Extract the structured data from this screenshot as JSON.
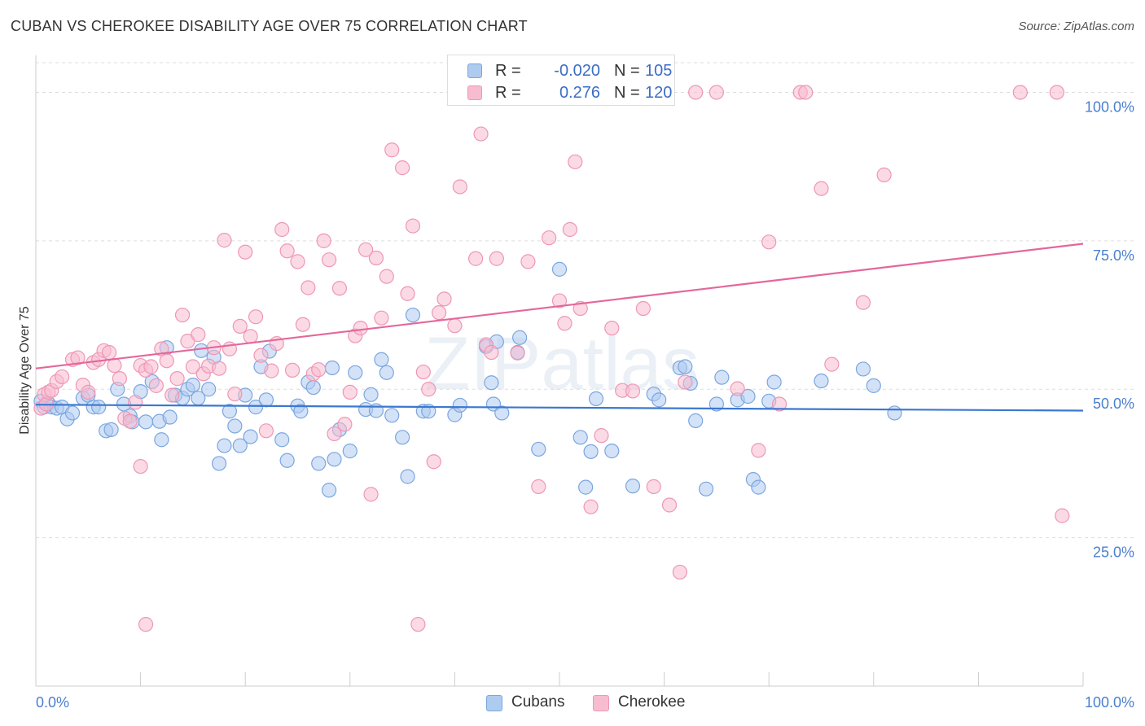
{
  "title": "CUBAN VS CHEROKEE DISABILITY AGE OVER 75 CORRELATION CHART",
  "source": "Source: ZipAtlas.com",
  "watermark": "ZIPatlas",
  "colors": {
    "cubans_fill": "#aecbf0",
    "cubans_stroke": "#7aa6e0",
    "cubans_line": "#3b78d0",
    "cherokee_fill": "#f7bcd0",
    "cherokee_stroke": "#ee97b5",
    "cherokee_line": "#e4679a",
    "tick_label": "#4a7fd0",
    "grid": "#dddddd"
  },
  "legend": {
    "rows": [
      {
        "r_label": "R =",
        "r_value": "-0.020",
        "n_label": "N =",
        "n_value": "105"
      },
      {
        "r_label": "R =",
        "r_value": "0.276",
        "n_label": "N =",
        "n_value": "120"
      }
    ]
  },
  "bottom_legend": {
    "cubans": "Cubans",
    "cherokee": "Cherokee"
  },
  "chart_data": {
    "type": "scatter",
    "title": "CUBAN VS CHEROKEE DISABILITY AGE OVER 75 CORRELATION CHART",
    "xlabel": "",
    "ylabel": "Disability Age Over 75",
    "xlim": [
      0,
      100
    ],
    "ylim": [
      0,
      105
    ],
    "x_tick_labels": [
      "0.0%",
      "100.0%"
    ],
    "y_ticks": [
      25,
      50,
      75,
      100
    ],
    "y_tick_labels": [
      "25.0%",
      "50.0%",
      "75.0%",
      "100.0%"
    ],
    "grid": true,
    "legend_position": "top-center",
    "series": [
      {
        "name": "Cubans",
        "r": -0.02,
        "n": 105,
        "trend": {
          "x": [
            0,
            100
          ],
          "y": [
            47.4,
            46.4
          ]
        },
        "points": [
          [
            0.5,
            48
          ],
          [
            0.8,
            47
          ],
          [
            1.2,
            47.6
          ],
          [
            1.5,
            47
          ],
          [
            2,
            46.8
          ],
          [
            2.5,
            47
          ],
          [
            3,
            45
          ],
          [
            3.5,
            46
          ],
          [
            4.5,
            48.5
          ],
          [
            5,
            49
          ],
          [
            5.5,
            47
          ],
          [
            6,
            47
          ],
          [
            6.7,
            43
          ],
          [
            7.2,
            43.2
          ],
          [
            7.8,
            50
          ],
          [
            8.4,
            47.5
          ],
          [
            9,
            45.5
          ],
          [
            9.2,
            44.5
          ],
          [
            10,
            49.6
          ],
          [
            10.5,
            44.5
          ],
          [
            11.1,
            51.3
          ],
          [
            11.8,
            44.6
          ],
          [
            12,
            41.5
          ],
          [
            12.5,
            57
          ],
          [
            12.8,
            45.3
          ],
          [
            13.3,
            49
          ],
          [
            14,
            48.5
          ],
          [
            14.5,
            50
          ],
          [
            15,
            50.7
          ],
          [
            15.5,
            48.5
          ],
          [
            15.8,
            56.5
          ],
          [
            16.5,
            50
          ],
          [
            17,
            55.4
          ],
          [
            17.5,
            37.5
          ],
          [
            18,
            40.5
          ],
          [
            18.5,
            46.3
          ],
          [
            19,
            43.8
          ],
          [
            19.5,
            40.5
          ],
          [
            20,
            49
          ],
          [
            20.5,
            42
          ],
          [
            21,
            47
          ],
          [
            21.5,
            53.8
          ],
          [
            22,
            48.2
          ],
          [
            22.3,
            56.4
          ],
          [
            23.5,
            41.5
          ],
          [
            24,
            38
          ],
          [
            25,
            47.2
          ],
          [
            25.3,
            46.3
          ],
          [
            26,
            51.2
          ],
          [
            26.5,
            50.3
          ],
          [
            27,
            37.5
          ],
          [
            28,
            33
          ],
          [
            28.3,
            53.6
          ],
          [
            28.5,
            38.2
          ],
          [
            29,
            43.2
          ],
          [
            30,
            39.6
          ],
          [
            30.5,
            52.8
          ],
          [
            31.5,
            46.6
          ],
          [
            32,
            49.1
          ],
          [
            32.5,
            46.4
          ],
          [
            33,
            55
          ],
          [
            33.5,
            52.8
          ],
          [
            34,
            45.6
          ],
          [
            35,
            41.9
          ],
          [
            35.5,
            35.3
          ],
          [
            36,
            62.5
          ],
          [
            37,
            46.3
          ],
          [
            37.5,
            46.3
          ],
          [
            40,
            45.7
          ],
          [
            40.5,
            47.3
          ],
          [
            43,
            57.2
          ],
          [
            43.5,
            51.1
          ],
          [
            43.7,
            47.5
          ],
          [
            44,
            58
          ],
          [
            44.5,
            46
          ],
          [
            46,
            56.2
          ],
          [
            46.2,
            58.7
          ],
          [
            48,
            39.9
          ],
          [
            50,
            70.2
          ],
          [
            52,
            41.9
          ],
          [
            52.5,
            33.5
          ],
          [
            53,
            39.5
          ],
          [
            53.5,
            48.4
          ],
          [
            55,
            39.6
          ],
          [
            57,
            33.7
          ],
          [
            59,
            49.2
          ],
          [
            59.5,
            48.2
          ],
          [
            61.5,
            53.6
          ],
          [
            62,
            53.8
          ],
          [
            62.5,
            51
          ],
          [
            63,
            44.7
          ],
          [
            64,
            33.2
          ],
          [
            65,
            47.5
          ],
          [
            65.5,
            52
          ],
          [
            67,
            48.2
          ],
          [
            68,
            48.8
          ],
          [
            68.5,
            34.8
          ],
          [
            69,
            33.5
          ],
          [
            70,
            48
          ],
          [
            70.5,
            51.2
          ],
          [
            75,
            51.4
          ],
          [
            79,
            53.4
          ],
          [
            80,
            50.6
          ],
          [
            82,
            46
          ]
        ]
      },
      {
        "name": "Cherokee",
        "r": 0.276,
        "n": 120,
        "trend": {
          "x": [
            0,
            100
          ],
          "y": [
            53.5,
            74.5
          ]
        },
        "points": [
          [
            0.5,
            46.8
          ],
          [
            0.8,
            49.1
          ],
          [
            1,
            47.5
          ],
          [
            1.2,
            49.5
          ],
          [
            1.5,
            49.8
          ],
          [
            2,
            51.3
          ],
          [
            2.5,
            52.1
          ],
          [
            3.5,
            55
          ],
          [
            4,
            55.3
          ],
          [
            4.5,
            50.7
          ],
          [
            5,
            49.5
          ],
          [
            5.5,
            54.5
          ],
          [
            6,
            55
          ],
          [
            6.5,
            56.5
          ],
          [
            7,
            56.2
          ],
          [
            7.5,
            54
          ],
          [
            8,
            51.8
          ],
          [
            8.5,
            45.1
          ],
          [
            9,
            44.6
          ],
          [
            9.5,
            47.8
          ],
          [
            10,
            54
          ],
          [
            10.5,
            53.2
          ],
          [
            11,
            53.8
          ],
          [
            11.5,
            50.6
          ],
          [
            12,
            56.8
          ],
          [
            12.5,
            54.8
          ],
          [
            13,
            49
          ],
          [
            13.5,
            51.8
          ],
          [
            14,
            62.5
          ],
          [
            14.5,
            58.1
          ],
          [
            15,
            53.8
          ],
          [
            15.5,
            59.2
          ],
          [
            16,
            52.6
          ],
          [
            16.5,
            53.9
          ],
          [
            17,
            57
          ],
          [
            17.5,
            53.5
          ],
          [
            18,
            75.1
          ],
          [
            18.5,
            56.8
          ],
          [
            19,
            49.2
          ],
          [
            19.5,
            60.6
          ],
          [
            20,
            73.1
          ],
          [
            20.5,
            58.9
          ],
          [
            21,
            62.2
          ],
          [
            21.5,
            55.7
          ],
          [
            22,
            43
          ],
          [
            22.5,
            53.1
          ],
          [
            23,
            57.7
          ],
          [
            23.5,
            76.9
          ],
          [
            24,
            73.3
          ],
          [
            24.5,
            53.2
          ],
          [
            25,
            71.5
          ],
          [
            25.5,
            60.9
          ],
          [
            26,
            67.1
          ],
          [
            26.5,
            52.6
          ],
          [
            27,
            53.3
          ],
          [
            27.5,
            75
          ],
          [
            28,
            71.8
          ],
          [
            28.5,
            42.5
          ],
          [
            29,
            67
          ],
          [
            29.5,
            44.1
          ],
          [
            30,
            49.5
          ],
          [
            30.5,
            59
          ],
          [
            31,
            60.3
          ],
          [
            31.5,
            73.5
          ],
          [
            32,
            32.3
          ],
          [
            32.5,
            72.1
          ],
          [
            33,
            62
          ],
          [
            33.5,
            69
          ],
          [
            34,
            90.3
          ],
          [
            35,
            87.3
          ],
          [
            35.5,
            66.1
          ],
          [
            36,
            77.5
          ],
          [
            37,
            52.9
          ],
          [
            37.5,
            50
          ],
          [
            38,
            37.8
          ],
          [
            38.5,
            62.9
          ],
          [
            39,
            65.2
          ],
          [
            40,
            60.7
          ],
          [
            40.5,
            84.1
          ],
          [
            42,
            72
          ],
          [
            42.5,
            93
          ],
          [
            43,
            57.5
          ],
          [
            43.5,
            56.2
          ],
          [
            44,
            72
          ],
          [
            46,
            56.1
          ],
          [
            47,
            71.5
          ],
          [
            48,
            33.6
          ],
          [
            49,
            75.5
          ],
          [
            50,
            64.9
          ],
          [
            50.5,
            61.1
          ],
          [
            51,
            76.9
          ],
          [
            51.5,
            88.3
          ],
          [
            52,
            63.6
          ],
          [
            53,
            30.2
          ],
          [
            54,
            42.2
          ],
          [
            55,
            60.3
          ],
          [
            56,
            49.8
          ],
          [
            57,
            49.7
          ],
          [
            58,
            63.6
          ],
          [
            59,
            33.6
          ],
          [
            60.5,
            30.5
          ],
          [
            61.5,
            19.2
          ],
          [
            62,
            51.2
          ],
          [
            63,
            100
          ],
          [
            65,
            100
          ],
          [
            67,
            50.1
          ],
          [
            69,
            39.7
          ],
          [
            70,
            74.8
          ],
          [
            71,
            47.5
          ],
          [
            73,
            100
          ],
          [
            73.5,
            100
          ],
          [
            75,
            83.8
          ],
          [
            76,
            54.2
          ],
          [
            79,
            64.6
          ],
          [
            81,
            86.1
          ],
          [
            94,
            100
          ],
          [
            97.5,
            100
          ],
          [
            98,
            28.7
          ],
          [
            10.5,
            10.4
          ],
          [
            10,
            37
          ],
          [
            36.5,
            10.4
          ]
        ]
      }
    ]
  }
}
